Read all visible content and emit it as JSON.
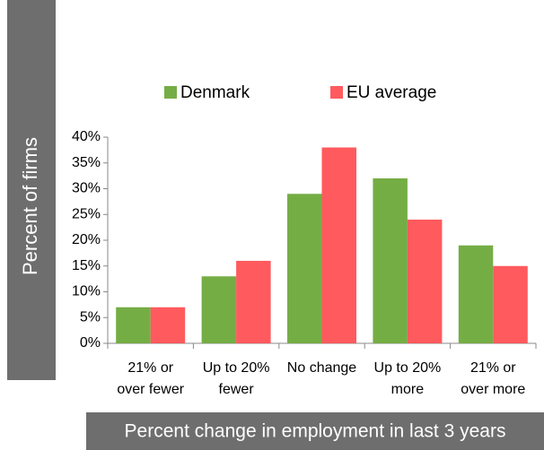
{
  "chart_data": {
    "type": "bar",
    "y_label": "Percent of firms",
    "x_label": "Percent change in employment in last 3 years",
    "categories": [
      [
        "21% or",
        "over fewer"
      ],
      [
        "Up to 20%",
        "fewer"
      ],
      [
        "No change"
      ],
      [
        "Up to 20%",
        "more"
      ],
      [
        "21% or",
        "over more"
      ]
    ],
    "series": [
      {
        "name": "Denmark",
        "color": "#75ad45",
        "values": [
          7,
          13,
          29,
          32,
          19
        ]
      },
      {
        "name": "EU average",
        "color": "#ff5a5e",
        "values": [
          7,
          16,
          38,
          24,
          15
        ]
      }
    ],
    "ylim": [
      0,
      40
    ],
    "yticks": [
      {
        "value": 0,
        "label": "0%"
      },
      {
        "value": 5,
        "label": "5%"
      },
      {
        "value": 10,
        "label": "10%"
      },
      {
        "value": 15,
        "label": "15%"
      },
      {
        "value": 20,
        "label": "20%"
      },
      {
        "value": 25,
        "label": "25%"
      },
      {
        "value": 30,
        "label": "30%"
      },
      {
        "value": 35,
        "label": "35%"
      },
      {
        "value": 40,
        "label": "40%"
      }
    ],
    "grid": false,
    "legend": "top"
  }
}
